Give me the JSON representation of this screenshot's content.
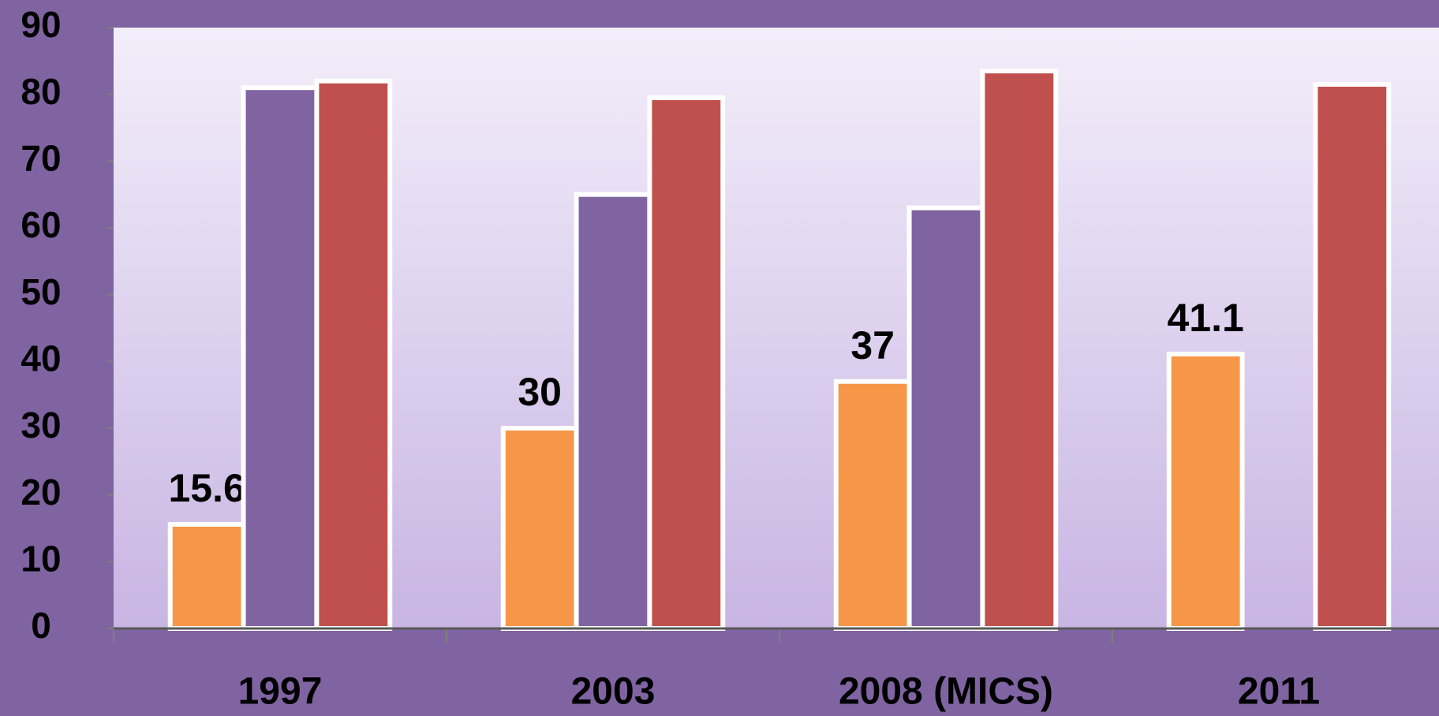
{
  "chart_data": {
    "type": "bar",
    "categories": [
      "1997",
      "2003",
      "2008 (MICS)",
      "2011"
    ],
    "series": [
      {
        "color": "#f79646",
        "values": [
          15.6,
          30,
          37,
          41.1
        ],
        "data_labels": true
      },
      {
        "color": "#8064a2",
        "values": [
          81,
          65,
          63,
          null
        ]
      },
      {
        "color": "#c0504d",
        "values": [
          82,
          79.5,
          83.5,
          81.5
        ]
      }
    ],
    "ylim": [
      0,
      90
    ],
    "yticks": [
      0,
      10,
      20,
      30,
      40,
      50,
      60,
      70,
      80,
      90
    ],
    "grid": false
  }
}
